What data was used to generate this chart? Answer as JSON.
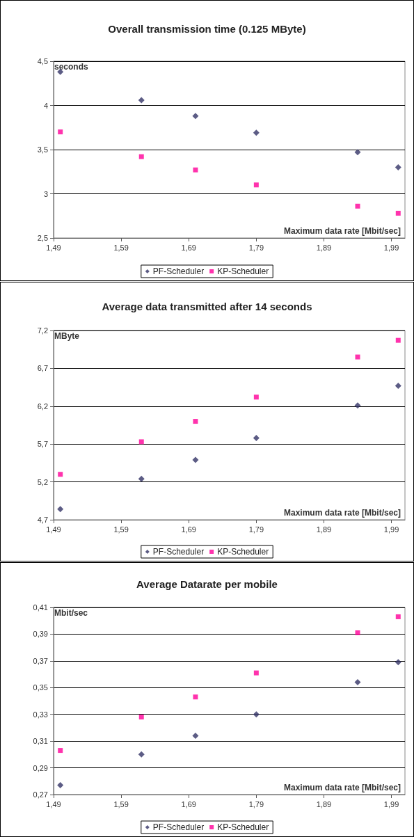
{
  "chart_data": [
    {
      "type": "scatter",
      "title": "Overall transmission time (0.125 MByte)",
      "xlabel": "Maximum data rate [Mbit/sec]",
      "ylabel": "seconds",
      "x": [
        1.5,
        1.62,
        1.7,
        1.79,
        1.94,
        2.0
      ],
      "series": [
        {
          "name": "PF-Scheduler",
          "color": "#333366",
          "marker": "diamond",
          "values": [
            4.38,
            4.06,
            3.88,
            3.69,
            3.47,
            3.3
          ]
        },
        {
          "name": "KP-Scheduler",
          "color": "#ff0099",
          "marker": "square",
          "values": [
            3.7,
            3.42,
            3.27,
            3.1,
            2.86,
            2.78
          ]
        }
      ],
      "xlim": [
        1.49,
        2.01
      ],
      "xticks": [
        {
          "value": 1.49,
          "label": "1,49"
        },
        {
          "value": 1.59,
          "label": "1,59"
        },
        {
          "value": 1.69,
          "label": "1,69"
        },
        {
          "value": 1.79,
          "label": "1,79"
        },
        {
          "value": 1.89,
          "label": "1,89"
        },
        {
          "value": 1.99,
          "label": "1,99"
        }
      ],
      "ylim": [
        2.5,
        4.5
      ],
      "yticks": [
        {
          "value": 2.5,
          "label": "2,5"
        },
        3,
        {
          "value": 3.5,
          "label": "3,5"
        },
        4,
        {
          "value": 4.5,
          "label": "4,5"
        }
      ],
      "grid": "y",
      "legend": "bottom"
    },
    {
      "type": "scatter",
      "title": "Average data transmitted after 14 seconds",
      "xlabel": "Maximum data rate [Mbit/sec]",
      "ylabel": "MByte",
      "x": [
        1.5,
        1.62,
        1.7,
        1.79,
        1.94,
        2.0
      ],
      "series": [
        {
          "name": "PF-Scheduler",
          "color": "#333366",
          "marker": "diamond",
          "values": [
            4.84,
            5.24,
            5.49,
            5.78,
            6.21,
            6.47
          ]
        },
        {
          "name": "KP-Scheduler",
          "color": "#ff0099",
          "marker": "square",
          "values": [
            5.3,
            5.73,
            6.0,
            6.32,
            6.85,
            7.07
          ]
        }
      ],
      "xlim": [
        1.49,
        2.01
      ],
      "xticks": [
        {
          "value": 1.49,
          "label": "1,49"
        },
        {
          "value": 1.59,
          "label": "1,59"
        },
        {
          "value": 1.69,
          "label": "1,69"
        },
        {
          "value": 1.79,
          "label": "1,79"
        },
        {
          "value": 1.89,
          "label": "1,89"
        },
        {
          "value": 1.99,
          "label": "1,99"
        }
      ],
      "ylim": [
        4.7,
        7.2
      ],
      "yticks": [
        {
          "value": 4.7,
          "label": "4,7"
        },
        {
          "value": 5.2,
          "label": "5,2"
        },
        {
          "value": 5.7,
          "label": "5,7"
        },
        {
          "value": 6.2,
          "label": "6,2"
        },
        {
          "value": 6.7,
          "label": "6,7"
        },
        {
          "value": 7.2,
          "label": "7,2"
        }
      ],
      "grid": "y",
      "legend": "bottom"
    },
    {
      "type": "scatter",
      "title": "Average Datarate per mobile",
      "xlabel": "Maximum data rate [Mbit/sec]",
      "ylabel": "Mbit/sec",
      "x": [
        1.5,
        1.62,
        1.7,
        1.79,
        1.94,
        2.0
      ],
      "series": [
        {
          "name": "PF-Scheduler",
          "color": "#333366",
          "marker": "diamond",
          "values": [
            0.277,
            0.3,
            0.314,
            0.33,
            0.354,
            0.369
          ]
        },
        {
          "name": "KP-Scheduler",
          "color": "#ff0099",
          "marker": "square",
          "values": [
            0.303,
            0.328,
            0.343,
            0.361,
            0.391,
            0.403
          ]
        }
      ],
      "xlim": [
        1.49,
        2.01
      ],
      "xticks": [
        {
          "value": 1.49,
          "label": "1,49"
        },
        {
          "value": 1.59,
          "label": "1,59"
        },
        {
          "value": 1.69,
          "label": "1,69"
        },
        {
          "value": 1.79,
          "label": "1,79"
        },
        {
          "value": 1.89,
          "label": "1,89"
        },
        {
          "value": 1.99,
          "label": "1,99"
        }
      ],
      "ylim": [
        0.27,
        0.41
      ],
      "yticks": [
        {
          "value": 0.27,
          "label": "0,27"
        },
        {
          "value": 0.29,
          "label": "0,29"
        },
        {
          "value": 0.31,
          "label": "0,31"
        },
        {
          "value": 0.33,
          "label": "0,33"
        },
        {
          "value": 0.35,
          "label": "0,35"
        },
        {
          "value": 0.37,
          "label": "0,37"
        },
        {
          "value": 0.39,
          "label": "0,39"
        },
        {
          "value": 0.41,
          "label": "0,41"
        }
      ],
      "grid": "y",
      "legend": "bottom"
    }
  ]
}
